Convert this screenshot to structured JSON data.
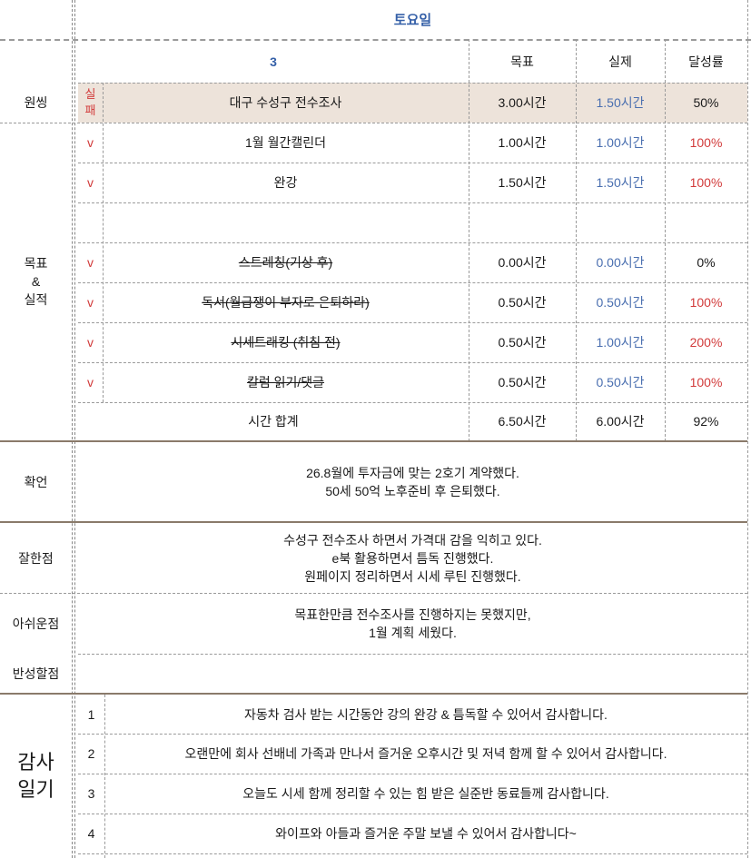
{
  "header": {
    "day": "토요일",
    "col_task": "3",
    "col_goal": "목표",
    "col_actual": "실제",
    "col_rate": "달성률"
  },
  "sections": {
    "wonssing": "원씽",
    "goal_actual": [
      "목표",
      "&",
      "실적"
    ],
    "affirmation": "확언",
    "good_points": "잘한점",
    "regrets": "아쉬운점",
    "reflection": "반성할점",
    "gratitude": [
      "감사",
      "일기"
    ]
  },
  "tasks": [
    {
      "mark": "실\n패",
      "mark_lines": [
        "실",
        "패"
      ],
      "name": "대구 수성구 전수조사",
      "goal": "3.00시간",
      "actual": "1.50시간",
      "rate": "50%",
      "rate_color": "black",
      "strike": false,
      "shaded": true
    },
    {
      "mark": "v",
      "name": "1월 월간캘린더",
      "goal": "1.00시간",
      "actual": "1.00시간",
      "rate": "100%",
      "rate_color": "red",
      "strike": false
    },
    {
      "mark": "v",
      "name": "완강",
      "goal": "1.50시간",
      "actual": "1.50시간",
      "rate": "100%",
      "rate_color": "red",
      "strike": false
    },
    {
      "mark": "",
      "name": "",
      "goal": "",
      "actual": "",
      "rate": "",
      "rate_color": "black",
      "strike": false
    },
    {
      "mark": "v",
      "name": "스트레칭(기상 후)",
      "goal": "0.00시간",
      "actual": "0.00시간",
      "rate": "0%",
      "rate_color": "black",
      "strike": true
    },
    {
      "mark": "v",
      "name": "독서(월급쟁이 부자로 은퇴하라)",
      "goal": "0.50시간",
      "actual": "0.50시간",
      "rate": "100%",
      "rate_color": "red",
      "strike": true
    },
    {
      "mark": "v",
      "name": "시세트래킹 (취침 전)",
      "goal": "0.50시간",
      "actual": "1.00시간",
      "rate": "200%",
      "rate_color": "red",
      "strike": true
    },
    {
      "mark": "v",
      "name": "칼럼 읽기/댓글",
      "goal": "0.50시간",
      "actual": "0.50시간",
      "rate": "100%",
      "rate_color": "red",
      "strike": true
    }
  ],
  "total": {
    "label": "시간 합계",
    "goal": "6.50시간",
    "actual": "6.00시간",
    "rate": "92%"
  },
  "affirmation_lines": [
    "26.8월에 투자금에 맞는 2호기 계약했다.",
    "50세 50억 노후준비 후 은퇴했다."
  ],
  "good_lines": [
    "수성구 전수조사 하면서 가격대 감을 익히고 있다.",
    "e북 활용하면서 틈독 진행했다.",
    "원페이지 정리하면서 시세 루틴 진행했다."
  ],
  "regret_lines": [
    "목표한만큼 전수조사를 진행하지는 못했지만,",
    "1월 계획 세웠다."
  ],
  "reflection_text": "",
  "gratitude_items": [
    {
      "num": "1",
      "text": "자동차 검사 받는 시간동안 강의 완강 & 틈독할 수 있어서 감사합니다."
    },
    {
      "num": "2",
      "text": "오랜만에 회사 선배네 가족과 만나서 즐거운 오후시간 및 저녁 함께 할 수 있어서 감사합니다."
    },
    {
      "num": "3",
      "text": "오늘도 시세 함께 정리할 수 있는 힘 받은 실준반 동료들께 감사합니다."
    },
    {
      "num": "4",
      "text": "와이프와 아들과 즐거운 주말 보낼 수 있어서 감사합니다~"
    }
  ],
  "colors": {
    "blue": "#4a6fb0",
    "red": "#d23b3b",
    "shade": "#ede3da",
    "divider": "#8a7a6a"
  }
}
